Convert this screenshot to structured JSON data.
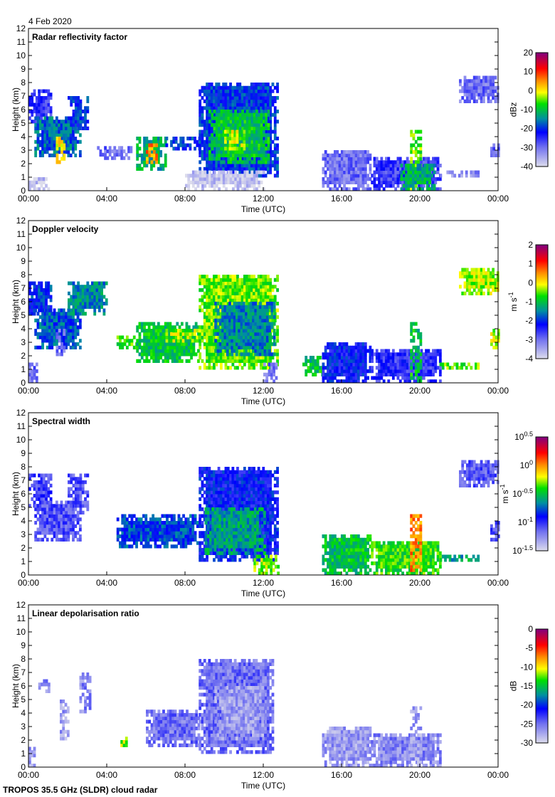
{
  "date_label": "4 Feb 2020",
  "footer": "TROPOS 35.5 GHz (SLDR) cloud radar",
  "chart_data": [
    {
      "type": "heatmap",
      "title": "Radar reflectivity factor",
      "xlabel": "Time (UTC)",
      "ylabel": "Height (km)",
      "xlim": [
        0,
        24
      ],
      "ylim": [
        0,
        12
      ],
      "xticks": [
        "00:00",
        "04:00",
        "08:00",
        "12:00",
        "16:00",
        "20:00",
        "00:00"
      ],
      "yticks": [
        "0",
        "1",
        "2",
        "3",
        "4",
        "5",
        "6",
        "7",
        "8",
        "9",
        "10",
        "11",
        "12"
      ],
      "colorbar": {
        "label": "dBz",
        "range": [
          -40,
          20
        ],
        "scale": "linear",
        "ticks": [
          "20",
          "10",
          "0",
          "-10",
          "-20",
          "-30",
          "-40"
        ]
      },
      "regions": [
        [
          0,
          1.2,
          5,
          7.3,
          -25
        ],
        [
          0.3,
          2.6,
          2.5,
          5.5,
          -17
        ],
        [
          1.4,
          1.8,
          2,
          4,
          0
        ],
        [
          2,
          3,
          4.5,
          7,
          -20
        ],
        [
          3.5,
          5.2,
          2.3,
          3.3,
          -30
        ],
        [
          5.5,
          7,
          1.5,
          4,
          -12
        ],
        [
          6,
          6.6,
          2,
          3.5,
          5
        ],
        [
          7,
          8.7,
          3,
          3.8,
          -20
        ],
        [
          8.7,
          12.7,
          1,
          8,
          -20
        ],
        [
          9.2,
          12.2,
          2,
          6,
          -10
        ],
        [
          10,
          11,
          3,
          4.5,
          -2
        ],
        [
          0,
          1,
          0,
          1,
          -38
        ],
        [
          8,
          12,
          0,
          1.5,
          -38
        ],
        [
          15,
          17.5,
          0,
          3,
          -30
        ],
        [
          17.5,
          21,
          0,
          2.5,
          -26
        ],
        [
          19.5,
          20,
          0,
          4.5,
          -5
        ],
        [
          19,
          20.8,
          0,
          2,
          -12
        ],
        [
          21,
          23,
          1,
          1.5,
          -32
        ],
        [
          22,
          24,
          6.5,
          8.3,
          -30
        ],
        [
          23.6,
          24,
          2.5,
          3.5,
          -30
        ]
      ]
    },
    {
      "type": "heatmap",
      "title": "Doppler velocity",
      "xlabel": "Time (UTC)",
      "ylabel": "Height (km)",
      "xlim": [
        0,
        24
      ],
      "ylim": [
        0,
        12
      ],
      "xticks": [
        "00:00",
        "04:00",
        "08:00",
        "12:00",
        "16:00",
        "20:00",
        "00:00"
      ],
      "yticks": [
        "0",
        "1",
        "2",
        "3",
        "4",
        "5",
        "6",
        "7",
        "8",
        "9",
        "10",
        "11",
        "12"
      ],
      "colorbar": {
        "label": "m s-1",
        "range": [
          -4,
          2
        ],
        "scale": "linear",
        "ticks": [
          "2",
          "1",
          "0",
          "-1",
          "-2",
          "-3",
          "-4"
        ]
      },
      "regions": [
        [
          0,
          1.2,
          5,
          7.3,
          -2
        ],
        [
          0.3,
          2.6,
          2.5,
          5.5,
          -1.8
        ],
        [
          1.4,
          1.8,
          2,
          4,
          -3
        ],
        [
          2,
          4,
          5,
          7.4,
          -1.5
        ],
        [
          4.5,
          5.5,
          2.5,
          3.5,
          -0.6
        ],
        [
          5.5,
          8.7,
          1.5,
          4.3,
          -1
        ],
        [
          7,
          8.7,
          3,
          4,
          -0.3
        ],
        [
          8.7,
          12.7,
          1,
          8,
          -0.5
        ],
        [
          9.5,
          12.5,
          2,
          6,
          -1.5
        ],
        [
          0,
          0.4,
          0,
          1.5,
          -3
        ],
        [
          12,
          12.7,
          0,
          1.5,
          -3
        ],
        [
          14,
          15,
          0.5,
          2,
          -1
        ],
        [
          15,
          17.5,
          0,
          3,
          -2.2
        ],
        [
          17.5,
          21,
          0,
          2.5,
          -2.5
        ],
        [
          19.5,
          20,
          0,
          4.5,
          -1
        ],
        [
          21,
          23,
          1,
          1.5,
          -0.5
        ],
        [
          22,
          24,
          6.5,
          8.3,
          -0.3
        ],
        [
          23.6,
          24,
          2.5,
          4,
          -0.3
        ]
      ]
    },
    {
      "type": "heatmap",
      "title": "Spectral width",
      "xlabel": "Time (UTC)",
      "ylabel": "Height (km)",
      "xlim": [
        0,
        24
      ],
      "ylim": [
        0,
        12
      ],
      "xticks": [
        "00:00",
        "04:00",
        "08:00",
        "12:00",
        "16:00",
        "20:00",
        "00:00"
      ],
      "yticks": [
        "0",
        "1",
        "2",
        "3",
        "4",
        "5",
        "6",
        "7",
        "8",
        "9",
        "10",
        "11",
        "12"
      ],
      "colorbar": {
        "label": "m s-1",
        "range": [
          -1.5,
          0.5
        ],
        "scale": "log10",
        "ticks": [
          "10^0.5",
          "10^0",
          "10^-0.5",
          "10^-1",
          "10^-1.5"
        ]
      },
      "regions": [
        [
          0,
          1.2,
          5,
          7.3,
          -1.05
        ],
        [
          0.3,
          2.6,
          2.5,
          5.5,
          -1.1
        ],
        [
          2,
          3,
          4.5,
          7.3,
          -1.1
        ],
        [
          4.5,
          8.7,
          2,
          4.3,
          -0.8
        ],
        [
          8.7,
          12.7,
          1,
          8,
          -0.9
        ],
        [
          9,
          12,
          1.5,
          5,
          -0.6
        ],
        [
          11.5,
          12.7,
          0,
          1.5,
          -0.3
        ],
        [
          15,
          17.5,
          0,
          3,
          -0.5
        ],
        [
          17.5,
          21,
          0,
          2.5,
          -0.4
        ],
        [
          19.5,
          20,
          0,
          4.5,
          0
        ],
        [
          21,
          23,
          1,
          1.5,
          -0.6
        ],
        [
          22,
          24,
          6.5,
          8.3,
          -1.1
        ],
        [
          23.6,
          24,
          2.5,
          4,
          -1.1
        ]
      ]
    },
    {
      "type": "heatmap",
      "title": "Linear depolarisation ratio",
      "xlabel": "Time (UTC)",
      "ylabel": "Height (km)",
      "xlim": [
        0,
        24
      ],
      "ylim": [
        0,
        12
      ],
      "xticks": [
        "00:00",
        "04:00",
        "08:00",
        "12:00",
        "16:00",
        "20:00",
        "00:00"
      ],
      "yticks": [
        "0",
        "1",
        "2",
        "3",
        "4",
        "5",
        "6",
        "7",
        "8",
        "9",
        "10",
        "11",
        "12"
      ],
      "colorbar": {
        "label": "dB",
        "range": [
          -30,
          0
        ],
        "scale": "linear",
        "ticks": [
          "0",
          "-5",
          "-10",
          "-15",
          "-20",
          "-25",
          "-30"
        ]
      },
      "regions": [
        [
          0.5,
          1,
          5.5,
          6.5,
          -26
        ],
        [
          1.6,
          2,
          2,
          5,
          -27
        ],
        [
          2.6,
          3.2,
          4,
          7,
          -26
        ],
        [
          4.7,
          5,
          1.5,
          2.2,
          -12
        ],
        [
          6,
          8.7,
          1.5,
          4.2,
          -25
        ],
        [
          8.7,
          12.5,
          1,
          8,
          -25
        ],
        [
          9.5,
          12,
          2,
          6,
          -27
        ],
        [
          15,
          17.5,
          0,
          3,
          -27
        ],
        [
          17.5,
          21,
          0,
          2.5,
          -26
        ],
        [
          19.5,
          20,
          0,
          4.5,
          -27
        ],
        [
          0,
          0.3,
          0,
          1.5,
          -27
        ]
      ]
    }
  ]
}
